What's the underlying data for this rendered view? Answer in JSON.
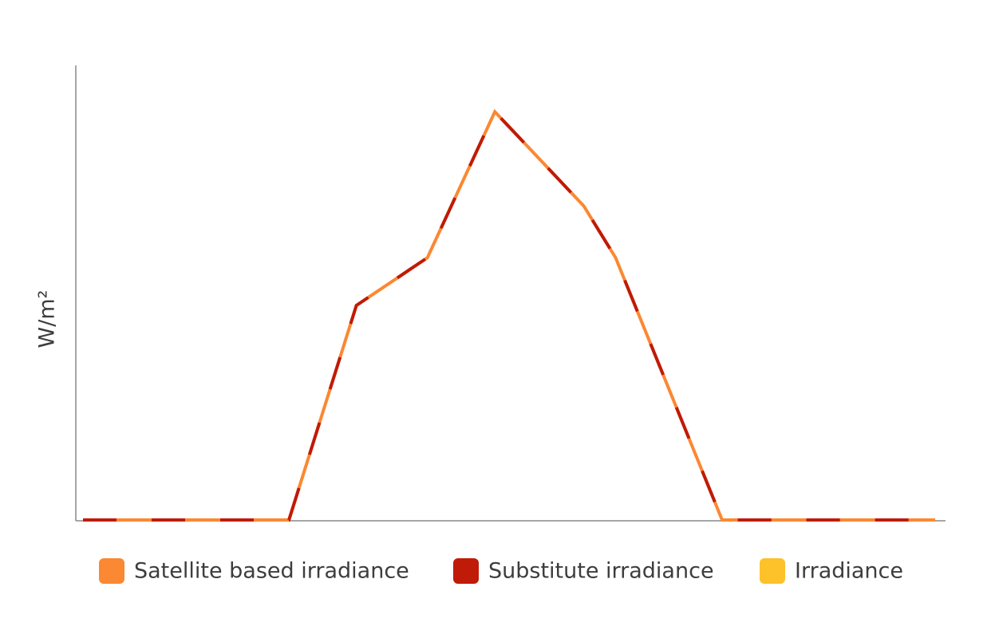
{
  "chart_data": {
    "type": "line",
    "y_label": "W/m²",
    "x": [
      0,
      5.8,
      7.7,
      9.7,
      11.6,
      14.1,
      15,
      18,
      24
    ],
    "xlim": [
      0,
      24
    ],
    "ylim": [
      0,
      1000
    ],
    "series": [
      {
        "name": "Satellite based irradiance",
        "color": "#fb8832",
        "values": [
          0,
          0,
          472,
          577,
          898,
          691,
          577,
          0,
          0
        ]
      },
      {
        "name": "Substitute irradiance",
        "color": "#c01a08",
        "dashed": true,
        "values": [
          0,
          0,
          472,
          577,
          898,
          691,
          577,
          0,
          0
        ]
      },
      {
        "name": "Irradiance",
        "color": "#fdc22a",
        "values": [
          null,
          null,
          null,
          null,
          null,
          null,
          null,
          null,
          null
        ]
      }
    ]
  }
}
